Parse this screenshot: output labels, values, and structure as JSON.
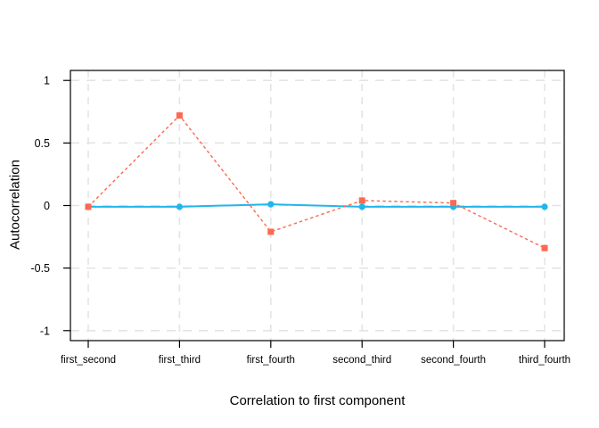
{
  "chart_data": {
    "type": "line",
    "title": "",
    "xlabel": "Correlation to first component",
    "ylabel": "Autocorrelation",
    "categories": [
      "first_second",
      "first_third",
      "first_fourth",
      "second_third",
      "second_fourth",
      "third_fourth"
    ],
    "y_tick_labels": [
      "1",
      "0.5",
      "0",
      "-0.5",
      "-1"
    ],
    "y_tick_values": [
      1,
      0.5,
      0,
      -0.5,
      -1
    ],
    "ylim": [
      -1.08,
      1.08
    ],
    "grid": "dashed-both-axes",
    "legend_position": "none",
    "series": [
      {
        "name": "cyan-solid-circles",
        "marker": "circle",
        "line": "solid",
        "color": "#22B5EC",
        "values": [
          -0.01,
          -0.01,
          0.01,
          -0.01,
          -0.01,
          -0.01
        ]
      },
      {
        "name": "red-dashed-squares",
        "marker": "square",
        "line": "dashed",
        "color": "#FA6A50",
        "values": [
          -0.01,
          0.72,
          -0.21,
          0.04,
          0.02,
          -0.34
        ]
      }
    ],
    "colors": {
      "grid": "#E4E4E4",
      "axis": "#000000",
      "text": "#000000",
      "background": "#FFFFFF"
    }
  }
}
